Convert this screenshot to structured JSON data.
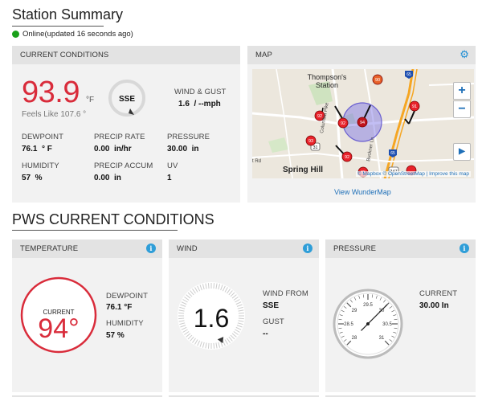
{
  "station_summary": {
    "title": "Station Summary",
    "status_text": "Online(updated 16 seconds ago)"
  },
  "current_conditions": {
    "header": "CURRENT CONDITIONS",
    "temperature": "93.9",
    "temp_unit": "°F",
    "feels_like": "Feels Like 107.6 °",
    "wind_dir": "SSE",
    "wind_gust_label": "WIND & GUST",
    "wind_gust_value": "1.6  / --mph",
    "dewpoint_label": "DEWPOINT",
    "dewpoint_value": "76.1  ° F",
    "precip_rate_label": "PRECIP RATE",
    "precip_rate_value": "0.00  in/hr",
    "pressure_label": "PRESSURE",
    "pressure_value": "30.00  in",
    "humidity_label": "HUMIDITY",
    "humidity_value": "57  %",
    "precip_accum_label": "PRECIP ACCUM",
    "precip_accum_value": "0.00  in",
    "uv_label": "UV",
    "uv_value": "1"
  },
  "map": {
    "header": "MAP",
    "place_top": "Thompson's",
    "place_top2": "Station",
    "place_bottom": "Spring Hill",
    "road_label": "Columbia Pike",
    "road_label2": "Buckner Ln",
    "attribution": "© Mapbox © OpenStreetMap | Improve this map",
    "view_link": "View WunderMap",
    "markers": [
      "90",
      "91",
      "92",
      "94",
      "92",
      "93",
      "92",
      "85"
    ],
    "zoom_in": "+",
    "zoom_out": "−",
    "play": "▶",
    "rd_label": "t Rd",
    "route_a": "31",
    "route_b": "247",
    "route_c": "65",
    "route_d": "65"
  },
  "pws": {
    "title": "PWS CURRENT CONDITIONS",
    "temperature_header": "TEMPERATURE",
    "current_label": "CURRENT",
    "current_temp": "94°",
    "dewpoint_label": "DEWPOINT",
    "dewpoint_value": "76.1 °F",
    "humidity_label": "HUMIDITY",
    "humidity_value": "57 %",
    "wind_header": "WIND",
    "wind_speed": "1.6",
    "wind_from_label": "WIND FROM",
    "wind_from_value": "SSE",
    "gust_label": "GUST",
    "gust_value": "--",
    "pressure_header": "PRESSURE",
    "pressure_current_label": "CURRENT",
    "pressure_current_value": "30.00 In",
    "gauge_ticks": [
      "28",
      "28.5",
      "29",
      "29.5",
      "30",
      "30.5",
      "31"
    ]
  },
  "colors": {
    "accent_red": "#d92c3b",
    "link_blue": "#1e6fb8",
    "online_green": "#1aa01a",
    "info_blue": "#2f9ed8"
  }
}
